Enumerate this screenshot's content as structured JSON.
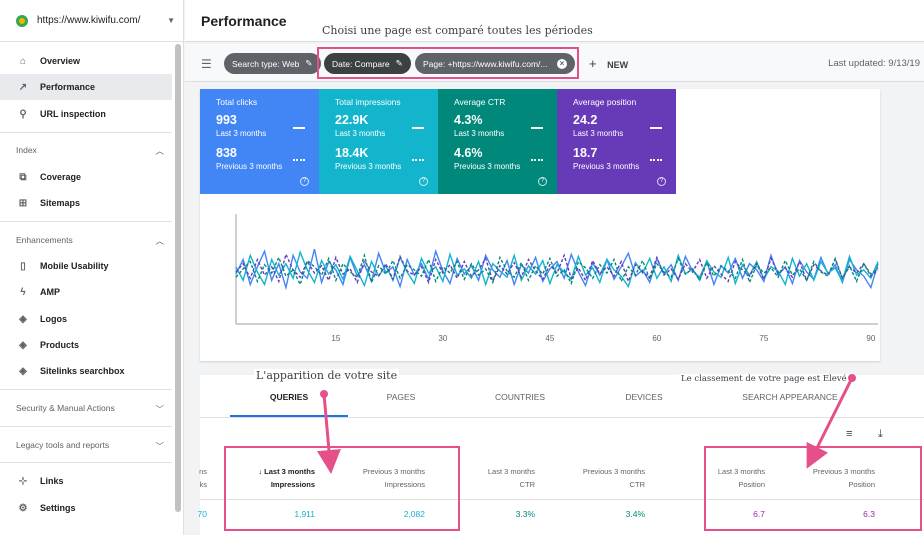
{
  "sidebar": {
    "site_url": "https://www.kiwifu.com/",
    "items": [
      {
        "label": "Overview",
        "icon": "home-icon",
        "glyph": "⌂"
      },
      {
        "label": "Performance",
        "icon": "trend-icon",
        "glyph": "↗"
      },
      {
        "label": "URL inspection",
        "icon": "search-icon",
        "glyph": "⚲"
      }
    ],
    "index_label": "Index",
    "index_items": [
      {
        "label": "Coverage",
        "icon": "coverage-icon",
        "glyph": "⧉"
      },
      {
        "label": "Sitemaps",
        "icon": "sitemap-icon",
        "glyph": "⊞"
      }
    ],
    "enhancements_label": "Enhancements",
    "enhancement_items": [
      {
        "label": "Mobile Usability",
        "icon": "phone-icon",
        "glyph": "▯"
      },
      {
        "label": "AMP",
        "icon": "bolt-icon",
        "glyph": "ϟ"
      },
      {
        "label": "Logos",
        "icon": "layers-icon",
        "glyph": "◈"
      },
      {
        "label": "Products",
        "icon": "layers-icon",
        "glyph": "◈"
      },
      {
        "label": "Sitelinks searchbox",
        "icon": "layers-icon",
        "glyph": "◈"
      }
    ],
    "security_label": "Security & Manual Actions",
    "legacy_label": "Legacy tools and reports",
    "bottom_items": [
      {
        "label": "Links",
        "icon": "links-icon",
        "glyph": "⊹"
      },
      {
        "label": "Settings",
        "icon": "gear-icon",
        "glyph": "⚙"
      }
    ]
  },
  "header": {
    "title": "Performance",
    "annotation": "Choisi une page est comparé toutes les périodes"
  },
  "filters": {
    "search_type": "Search type: Web",
    "date": "Date: Compare",
    "page": "Page: +https://www.kiwifu.com/...",
    "new_label": "NEW",
    "last_updated": "Last updated: 9/13/19"
  },
  "metrics": [
    {
      "name": "Total clicks",
      "last": "993",
      "prev": "838",
      "color": "#4285f4"
    },
    {
      "name": "Total impressions",
      "last": "22.9K",
      "prev": "18.4K",
      "color": "#12b5cb"
    },
    {
      "name": "Average CTR",
      "last": "4.3%",
      "prev": "4.6%",
      "color": "#00897b"
    },
    {
      "name": "Average position",
      "last": "24.2",
      "prev": "18.7",
      "color": "#673ab7"
    }
  ],
  "metric_last_label": "Last 3 months",
  "metric_prev_label": "Previous 3 months",
  "chart_data": {
    "type": "line",
    "x_ticks": [
      "15",
      "30",
      "45",
      "60",
      "75",
      "90"
    ],
    "x_range": [
      1,
      91
    ],
    "y_range": [
      0,
      100
    ],
    "grid": false,
    "series": [
      {
        "color": "#4285f4",
        "dashed": false,
        "values": [
          48,
          62,
          38,
          55,
          70,
          42,
          58,
          35,
          66,
          50,
          44,
          72,
          40,
          60,
          52,
          38,
          64,
          46,
          57,
          41,
          68,
          49,
          55,
          36,
          62,
          47,
          58,
          43,
          70,
          51,
          39,
          63,
          48,
          56,
          42,
          66,
          52,
          45,
          61,
          38,
          57,
          49,
          64,
          41,
          53,
          60,
          44,
          67,
          50,
          37,
          59,
          47,
          62,
          43,
          55,
          68,
          46,
          52,
          40,
          63,
          48,
          57,
          42,
          65,
          51,
          45,
          60,
          38,
          56,
          49,
          63,
          44,
          58,
          52,
          41,
          66,
          47,
          55,
          39,
          61,
          50,
          43,
          64,
          48,
          57,
          40,
          62,
          52,
          46,
          35,
          58
        ],
        "name": ""
      },
      {
        "color": "#12b5cb",
        "dashed": false,
        "values": [
          55,
          42,
          66,
          50,
          38,
          62,
          47,
          58,
          44,
          69,
          52,
          40,
          61,
          48,
          57,
          43,
          65,
          51,
          37,
          60,
          46,
          56,
          42,
          64,
          50,
          39,
          63,
          49,
          55,
          41,
          67,
          47,
          53,
          44,
          60,
          38,
          58,
          51,
          45,
          66,
          42,
          56,
          48,
          61,
          39,
          57,
          50,
          43,
          65,
          47,
          54,
          40,
          62,
          52,
          46,
          36,
          59,
          49,
          63,
          44,
          55,
          41,
          66,
          48,
          53,
          42,
          61,
          50,
          45,
          64,
          39,
          57,
          47,
          60,
          43,
          55,
          51,
          38,
          63,
          46,
          58,
          42,
          60,
          49,
          54,
          41,
          65,
          47,
          52,
          44,
          60
        ],
        "name": ""
      },
      {
        "color": "#673ab7",
        "dashed": true,
        "values": [
          50,
          58,
          44,
          62,
          47,
          55,
          41,
          67,
          52,
          45,
          60,
          49,
          56,
          42,
          64,
          48,
          53,
          40,
          61,
          50,
          46,
          58,
          43,
          65,
          51,
          47,
          55,
          40,
          62,
          49,
          57,
          44,
          60,
          46,
          52,
          63,
          41,
          56,
          48,
          59,
          45,
          62,
          51,
          43,
          57,
          49,
          66,
          44,
          54,
          42,
          61,
          48,
          55,
          46,
          60,
          41,
          57,
          50,
          45,
          64,
          47,
          53,
          43,
          58,
          50,
          62,
          44,
          56,
          48,
          41,
          60,
          52,
          46,
          58,
          43,
          63,
          49,
          54,
          45,
          60,
          42,
          57,
          51,
          47,
          62,
          44,
          55,
          49,
          58,
          46,
          52
        ],
        "name": ""
      },
      {
        "color": "#00897b",
        "dashed": true,
        "values": [
          45,
          53,
          60,
          41,
          57,
          49,
          64,
          46,
          52,
          38,
          61,
          55,
          47,
          63,
          42,
          58,
          50,
          45,
          66,
          40,
          56,
          48,
          61,
          44,
          57,
          52,
          46,
          62,
          41,
          55,
          49,
          60,
          43,
          58,
          47,
          53,
          40,
          64,
          51,
          45,
          59,
          42,
          56,
          48,
          63,
          46,
          52,
          39,
          60,
          54,
          44,
          57,
          49,
          62,
          41,
          55,
          47,
          61,
          43,
          58,
          50,
          45,
          63,
          48,
          53,
          42,
          59,
          46,
          56,
          51,
          44,
          62,
          40,
          57,
          49,
          54,
          45,
          61,
          47,
          53,
          42,
          60,
          50,
          46,
          63,
          44,
          56,
          41,
          58,
          48,
          54
        ],
        "name": ""
      }
    ]
  },
  "tabs": [
    "QUERIES",
    "PAGES",
    "COUNTRIES",
    "DEVICES",
    "SEARCH APPEARANCE"
  ],
  "table": {
    "partial_head": [
      "ns",
      "ks"
    ],
    "columns": [
      {
        "period": "Last 3 months",
        "metric": "Impressions",
        "value": "1,911",
        "color": "#12b5cb",
        "sorted": true
      },
      {
        "period": "Previous 3 months",
        "metric": "Impressions",
        "value": "2,082",
        "color": "#12b5cb",
        "sorted": false
      },
      {
        "period": "Last 3 months",
        "metric": "CTR",
        "value": "3.3%",
        "color": "#00897b",
        "sorted": false
      },
      {
        "period": "Previous 3 months",
        "metric": "CTR",
        "value": "3.4%",
        "color": "#00897b",
        "sorted": false
      },
      {
        "period": "Last 3 months",
        "metric": "Position",
        "value": "6.7",
        "color": "#9c27b0",
        "sorted": false
      },
      {
        "period": "Previous 3 months",
        "metric": "Position",
        "value": "6.3",
        "color": "#9c27b0",
        "sorted": false
      }
    ],
    "partial_value": "70"
  },
  "annotations": {
    "site_appearance": "L'apparition de votre site",
    "ranking": "Le classement de votre page est Elevé"
  },
  "colors": {
    "highlight": "#e6508a",
    "accent": "#1a73e8"
  }
}
